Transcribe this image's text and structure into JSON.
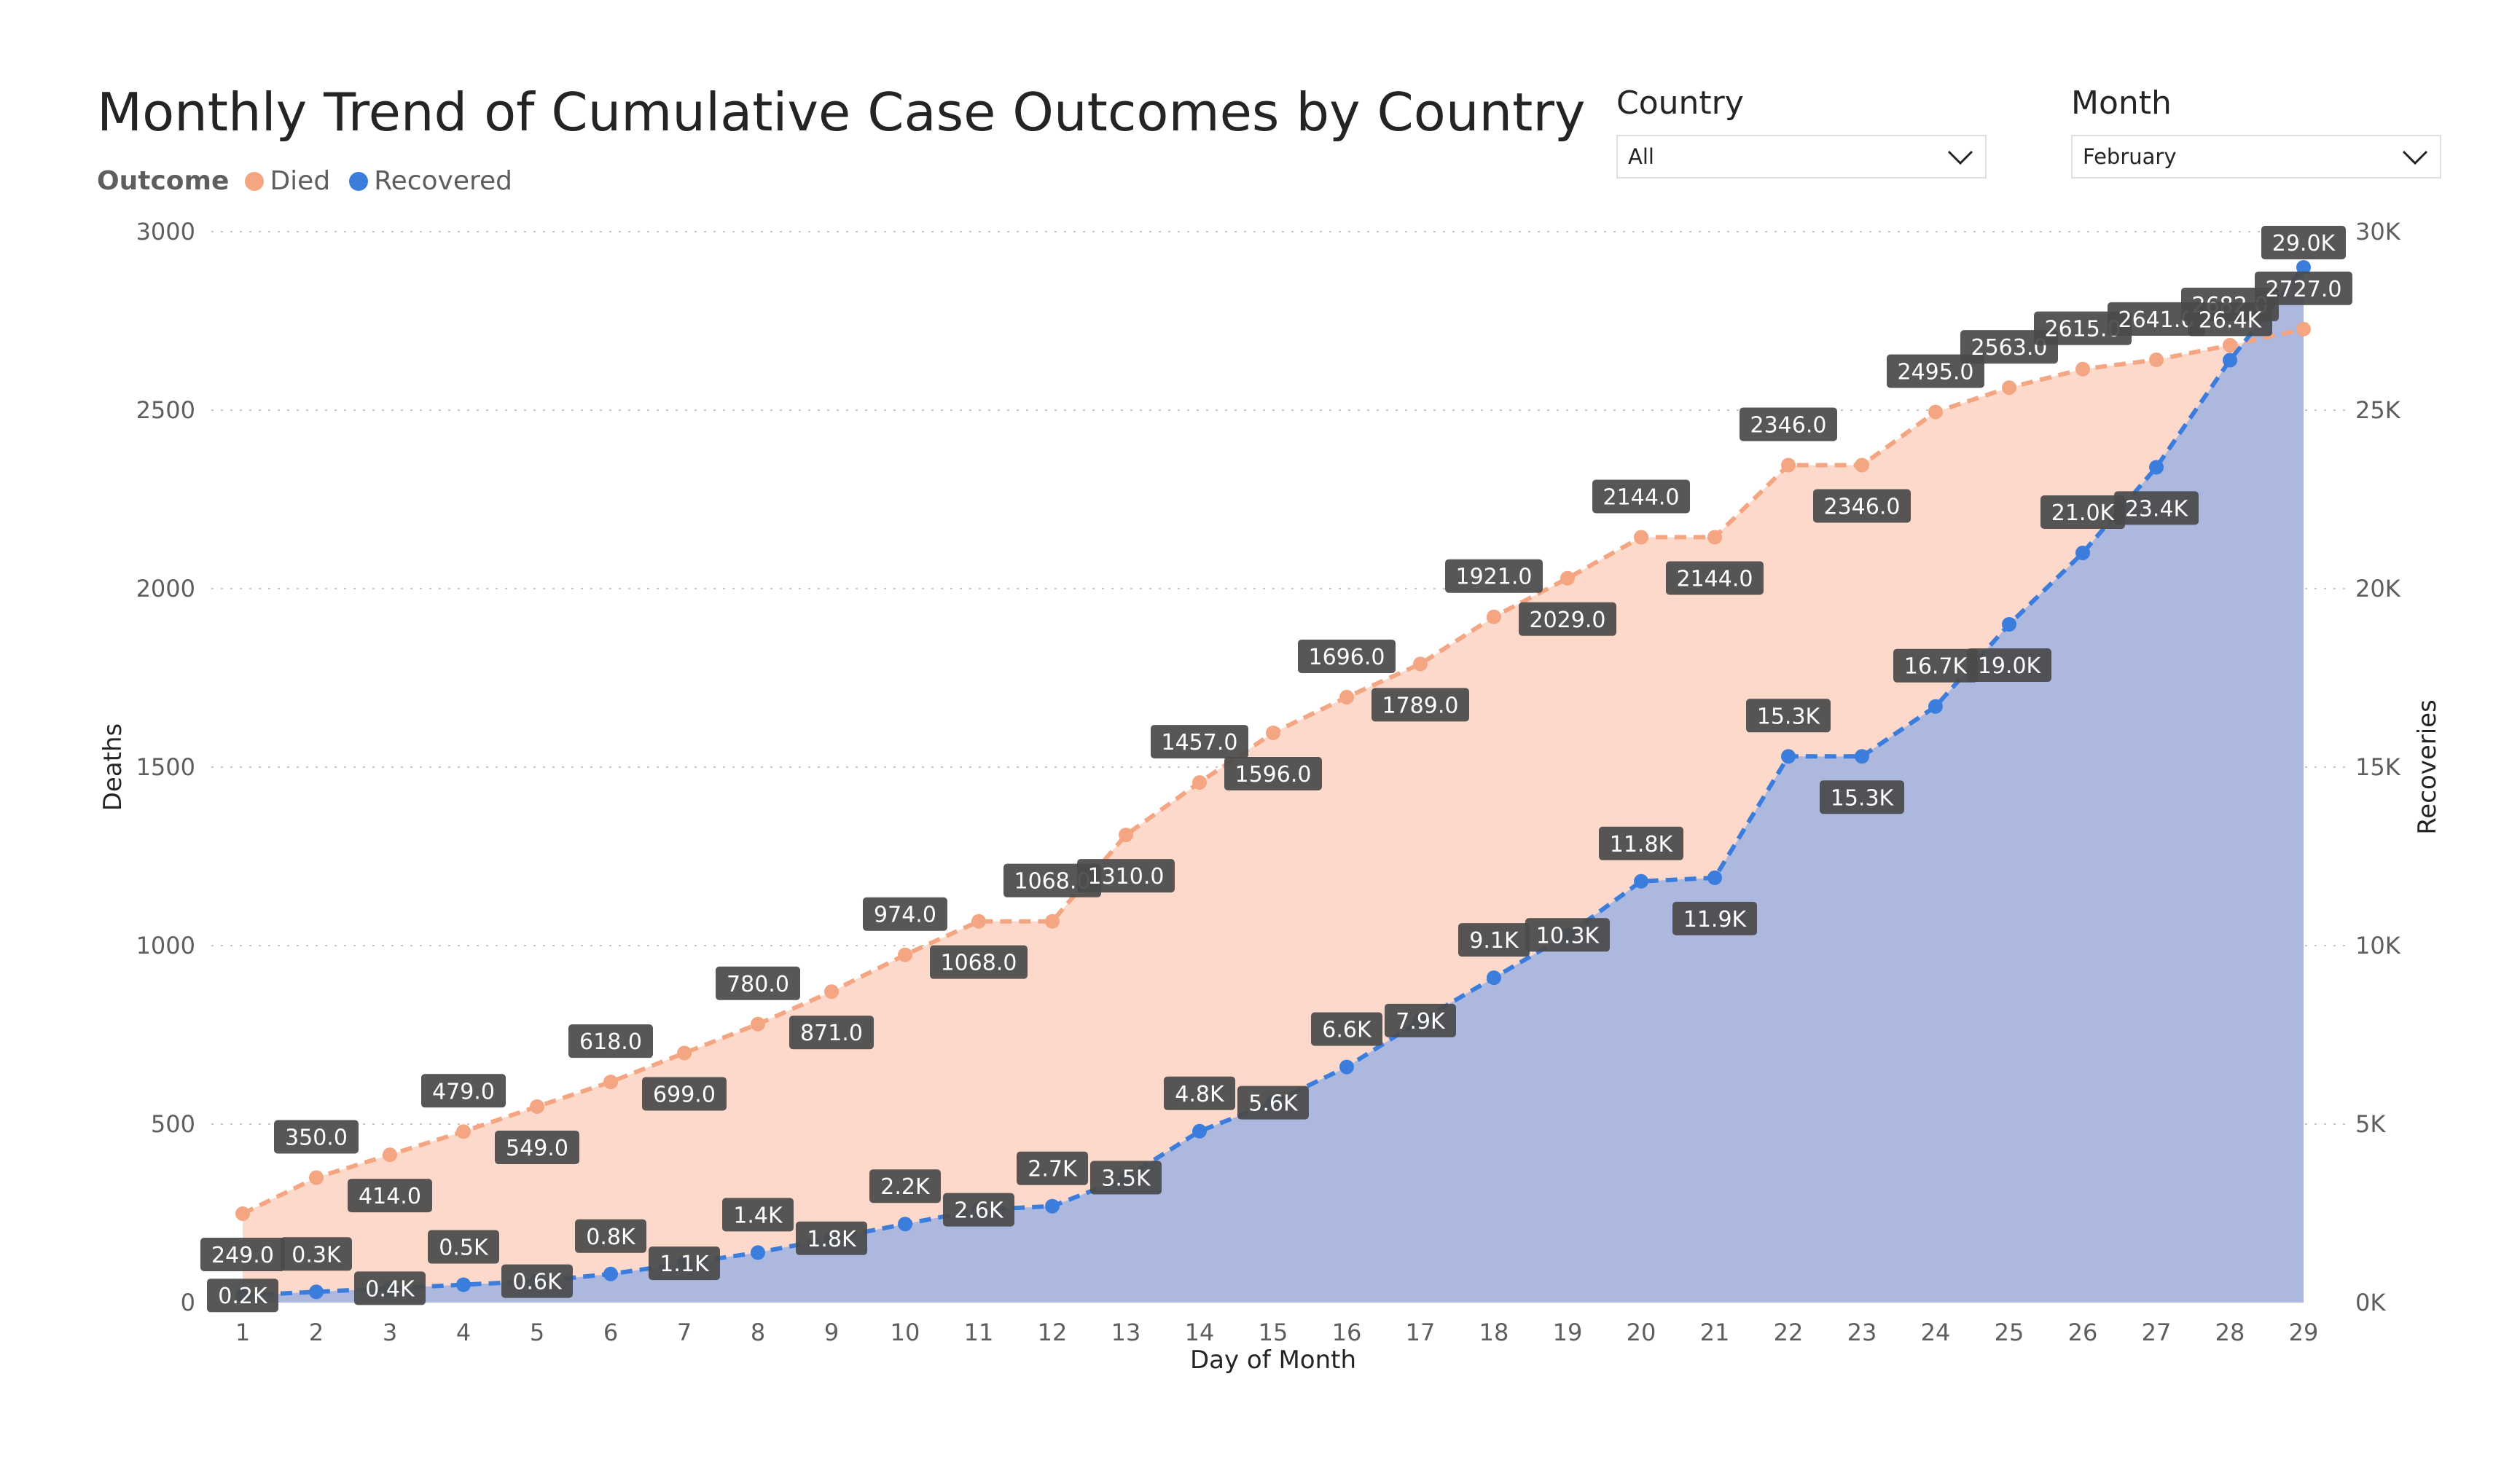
{
  "title": "Monthly Trend of Cumulative Case Outcomes by Country",
  "legend": {
    "label": "Outcome",
    "items": [
      {
        "name": "Died",
        "color": "#f4a582"
      },
      {
        "name": "Recovered",
        "color": "#3b7ddd"
      }
    ]
  },
  "slicers": {
    "country": {
      "title": "Country",
      "value": "All"
    },
    "month": {
      "title": "Month",
      "value": "February"
    }
  },
  "chart_data": {
    "type": "area",
    "title": "Monthly Trend of Cumulative Case Outcomes by Country",
    "xlabel": "Day of Month",
    "ylabel": "Deaths",
    "y2label": "Recoveries",
    "x": [
      1,
      2,
      3,
      4,
      5,
      6,
      7,
      8,
      9,
      10,
      11,
      12,
      13,
      14,
      15,
      16,
      17,
      18,
      19,
      20,
      21,
      22,
      23,
      24,
      25,
      26,
      27,
      28,
      29
    ],
    "ylim": [
      0,
      3000
    ],
    "y2lim": [
      0,
      30000
    ],
    "yticks": [
      "0",
      "500",
      "1000",
      "1500",
      "2000",
      "2500",
      "3000"
    ],
    "y2ticks": [
      "0K",
      "5K",
      "10K",
      "15K",
      "20K",
      "25K",
      "30K"
    ],
    "grid": true,
    "series": [
      {
        "name": "Died",
        "axis": "left",
        "color": "#f4a582",
        "fill": "#fcd9ca",
        "values": [
          249,
          350,
          414,
          479,
          549,
          618,
          699,
          780,
          871,
          974,
          1068,
          1068,
          1310,
          1457,
          1596,
          1696,
          1789,
          1921,
          2029,
          2144,
          2144,
          2346,
          2346,
          2495,
          2563,
          2615,
          2641,
          2682,
          2727
        ],
        "labels": [
          "249.0",
          "350.0",
          "414.0",
          "479.0",
          "549.0",
          "618.0",
          "699.0",
          "780.0",
          "871.0",
          "974.0",
          "1068.0",
          "1068.0",
          "1310.0",
          "1457.0",
          "1596.0",
          "1696.0",
          "1789.0",
          "1921.0",
          "2029.0",
          "2144.0",
          "2144.0",
          "2346.0",
          "2346.0",
          "2495.0",
          "2563.0",
          "2615.0",
          "2641.0",
          "2682.0",
          "2727.0"
        ]
      },
      {
        "name": "Recovered",
        "axis": "right",
        "color": "#3b7ddd",
        "fill": "#adb8df",
        "values": [
          200,
          300,
          400,
          500,
          600,
          800,
          1100,
          1400,
          1800,
          2200,
          2600,
          2700,
          3500,
          4800,
          5600,
          6600,
          7900,
          9100,
          10300,
          11800,
          11900,
          15300,
          15300,
          16700,
          19000,
          21000,
          23400,
          26400,
          29000
        ],
        "labels": [
          "0.2K",
          "0.3K",
          "0.4K",
          "0.5K",
          "0.6K",
          "0.8K",
          "1.1K",
          "1.4K",
          "1.8K",
          "2.2K",
          "2.6K",
          "2.7K",
          "3.5K",
          "4.8K",
          "5.6K",
          "6.6K",
          "7.9K",
          "9.1K",
          "10.3K",
          "11.8K",
          "11.9K",
          "15.3K",
          "15.3K",
          "16.7K",
          "19.0K",
          "21.0K",
          "23.4K",
          "26.4K",
          "29.0K"
        ]
      }
    ]
  }
}
